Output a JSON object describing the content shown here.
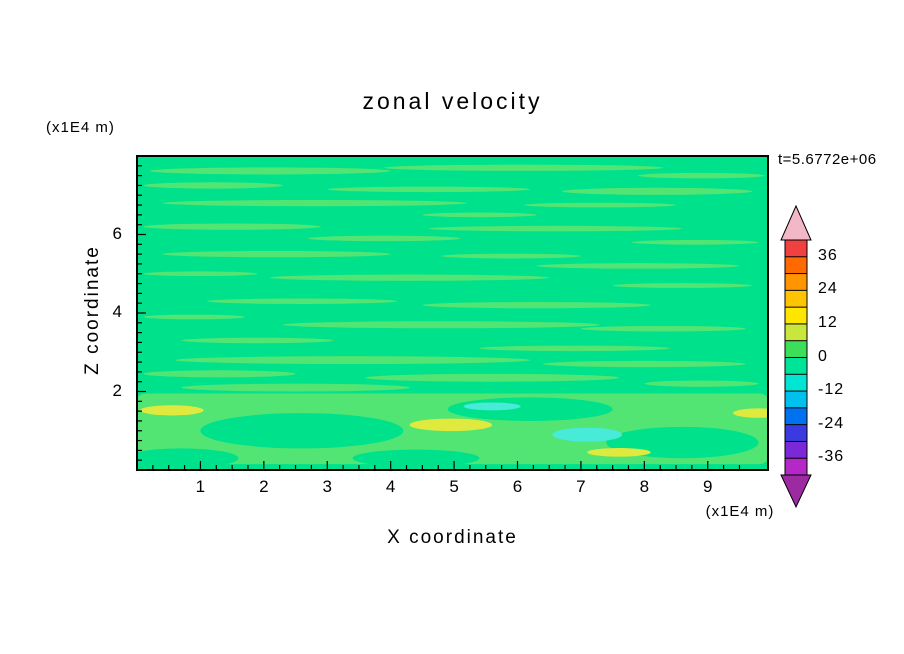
{
  "title": "zonal velocity",
  "timestamp": "t=5.6772e+06",
  "axes": {
    "x_label": "X coordinate",
    "x_unit": "(x1E4 m)",
    "y_label": "Z coordinate",
    "y_unit": "(x1E4 m)",
    "x_ticks": [
      1,
      2,
      3,
      4,
      5,
      6,
      7,
      8,
      9
    ],
    "y_ticks": [
      2,
      4,
      6
    ]
  },
  "chart_data": {
    "type": "heatmap",
    "title": "zonal velocity",
    "xlabel": "X coordinate",
    "ylabel": "Z coordinate",
    "x_unit": "(x1E4 m)",
    "y_unit": "(x1E4 m)",
    "time_annotation": "t=5.6772e+06",
    "xlim": [
      0,
      9.95
    ],
    "ylim": [
      0,
      8
    ],
    "grid": false,
    "colorbar": {
      "position": "right",
      "tick_labels": [
        36,
        24,
        12,
        0,
        -12,
        -24,
        -36
      ],
      "level_step": 6,
      "range": [
        -42,
        42
      ],
      "segment_colors_top_to_bottom": [
        "#F04040",
        "#FF6A00",
        "#FF9500",
        "#FFC400",
        "#FFE600",
        "#C8E63C",
        "#3CDE5A",
        "#00E49A",
        "#00E6D2",
        "#00C0EE",
        "#0072F0",
        "#3A3AE0",
        "#7A28D8",
        "#B428C8"
      ],
      "over_arrow_color": "#F2B8C8",
      "under_arrow_color": "#9C2AA0"
    },
    "palette": {
      "base": "#00E18C",
      "streak": "#52E573",
      "yellow": "#E0EA3E",
      "cyan": "#48EAD8"
    },
    "field_description": "Zonal velocity field is near zero almost everywhere (green band between -6 and +6), marbled with thin horizontal streaks of the adjacent contour level. Below z~2 the flow is more structured: broad light-green patches, positive anomalies ~+12 (yellow blobs) near x~0.5, x~5.0, x~7.6 and the right edge, and negative anomalies ~-12 (cyan patches) near x~7.1 z~0.9 and x~5.6 z~1.6.",
    "features": [
      {
        "x": 2.1,
        "z": 7.62,
        "rx": 1.9,
        "rz": 0.09,
        "color": "streak"
      },
      {
        "x": 6.1,
        "z": 7.7,
        "rx": 2.2,
        "rz": 0.08,
        "color": "streak"
      },
      {
        "x": 8.9,
        "z": 7.5,
        "rx": 1.0,
        "rz": 0.07,
        "color": "streak"
      },
      {
        "x": 1.2,
        "z": 7.25,
        "rx": 1.1,
        "rz": 0.08,
        "color": "streak"
      },
      {
        "x": 4.6,
        "z": 7.15,
        "rx": 1.6,
        "rz": 0.07,
        "color": "streak"
      },
      {
        "x": 8.2,
        "z": 7.1,
        "rx": 1.5,
        "rz": 0.09,
        "color": "streak"
      },
      {
        "x": 2.8,
        "z": 6.8,
        "rx": 2.4,
        "rz": 0.08,
        "color": "streak"
      },
      {
        "x": 7.3,
        "z": 6.75,
        "rx": 1.2,
        "rz": 0.06,
        "color": "streak"
      },
      {
        "x": 5.4,
        "z": 6.5,
        "rx": 0.9,
        "rz": 0.06,
        "color": "streak"
      },
      {
        "x": 1.5,
        "z": 6.2,
        "rx": 1.4,
        "rz": 0.08,
        "color": "streak"
      },
      {
        "x": 6.6,
        "z": 6.15,
        "rx": 2.0,
        "rz": 0.07,
        "color": "streak"
      },
      {
        "x": 3.9,
        "z": 5.9,
        "rx": 1.2,
        "rz": 0.07,
        "color": "streak"
      },
      {
        "x": 8.8,
        "z": 5.8,
        "rx": 1.0,
        "rz": 0.06,
        "color": "streak"
      },
      {
        "x": 2.2,
        "z": 5.5,
        "rx": 1.8,
        "rz": 0.08,
        "color": "streak"
      },
      {
        "x": 5.9,
        "z": 5.45,
        "rx": 1.1,
        "rz": 0.06,
        "color": "streak"
      },
      {
        "x": 7.9,
        "z": 5.2,
        "rx": 1.6,
        "rz": 0.07,
        "color": "streak"
      },
      {
        "x": 1.0,
        "z": 5.0,
        "rx": 0.9,
        "rz": 0.06,
        "color": "streak"
      },
      {
        "x": 4.3,
        "z": 4.9,
        "rx": 2.2,
        "rz": 0.08,
        "color": "streak"
      },
      {
        "x": 8.6,
        "z": 4.7,
        "rx": 1.1,
        "rz": 0.06,
        "color": "streak"
      },
      {
        "x": 2.6,
        "z": 4.3,
        "rx": 1.5,
        "rz": 0.07,
        "color": "streak"
      },
      {
        "x": 6.3,
        "z": 4.2,
        "rx": 1.8,
        "rz": 0.08,
        "color": "streak"
      },
      {
        "x": 0.9,
        "z": 3.9,
        "rx": 0.8,
        "rz": 0.06,
        "color": "streak"
      },
      {
        "x": 4.8,
        "z": 3.7,
        "rx": 2.5,
        "rz": 0.09,
        "color": "streak"
      },
      {
        "x": 8.3,
        "z": 3.6,
        "rx": 1.3,
        "rz": 0.07,
        "color": "streak"
      },
      {
        "x": 1.9,
        "z": 3.3,
        "rx": 1.2,
        "rz": 0.07,
        "color": "streak"
      },
      {
        "x": 6.9,
        "z": 3.1,
        "rx": 1.5,
        "rz": 0.07,
        "color": "streak"
      },
      {
        "x": 3.4,
        "z": 2.8,
        "rx": 2.8,
        "rz": 0.1,
        "color": "streak"
      },
      {
        "x": 8.0,
        "z": 2.7,
        "rx": 1.6,
        "rz": 0.08,
        "color": "streak"
      },
      {
        "x": 1.3,
        "z": 2.45,
        "rx": 1.2,
        "rz": 0.09,
        "color": "streak"
      },
      {
        "x": 5.6,
        "z": 2.35,
        "rx": 2.0,
        "rz": 0.1,
        "color": "streak"
      },
      {
        "x": 8.9,
        "z": 2.2,
        "rx": 0.9,
        "rz": 0.08,
        "color": "streak"
      },
      {
        "x": 2.5,
        "z": 2.1,
        "rx": 1.8,
        "rz": 0.1,
        "color": "streak"
      },
      {
        "shape": "rect",
        "x": 4.975,
        "z": 1.05,
        "rx": 5.0,
        "rz": 0.9,
        "color": "streak"
      },
      {
        "x": 2.6,
        "z": 1.0,
        "rx": 1.6,
        "rz": 0.45,
        "color": "base"
      },
      {
        "x": 6.2,
        "z": 1.55,
        "rx": 1.3,
        "rz": 0.3,
        "color": "base"
      },
      {
        "x": 8.6,
        "z": 0.7,
        "rx": 1.2,
        "rz": 0.4,
        "color": "base"
      },
      {
        "x": 0.7,
        "z": 0.3,
        "rx": 0.9,
        "rz": 0.25,
        "color": "base"
      },
      {
        "x": 4.4,
        "z": 0.3,
        "rx": 1.0,
        "rz": 0.22,
        "color": "base"
      },
      {
        "x": 0.55,
        "z": 1.52,
        "rx": 0.5,
        "rz": 0.13,
        "color": "yellow"
      },
      {
        "x": 4.95,
        "z": 1.15,
        "rx": 0.65,
        "rz": 0.16,
        "color": "yellow"
      },
      {
        "x": 9.8,
        "z": 1.45,
        "rx": 0.4,
        "rz": 0.12,
        "color": "yellow"
      },
      {
        "x": 7.6,
        "z": 0.45,
        "rx": 0.5,
        "rz": 0.11,
        "color": "yellow"
      },
      {
        "x": 7.1,
        "z": 0.9,
        "rx": 0.55,
        "rz": 0.18,
        "color": "cyan"
      },
      {
        "x": 5.6,
        "z": 1.62,
        "rx": 0.45,
        "rz": 0.1,
        "color": "cyan"
      }
    ]
  }
}
